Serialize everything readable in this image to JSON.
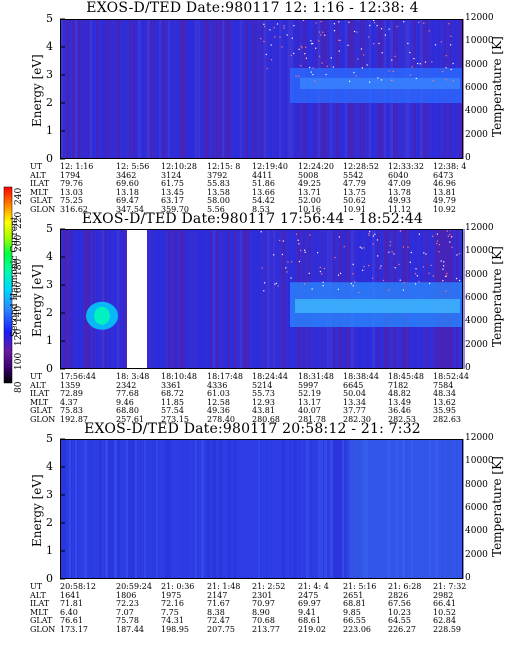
{
  "colorbar": {
    "label": "Second Harmonic Current",
    "ticks": [
      "240",
      "220",
      "200",
      "180",
      "160",
      "140",
      "120",
      "100",
      "80"
    ],
    "colors": [
      "#000000",
      "#3a0070",
      "#7a1aa0",
      "#1a1aff",
      "#2a7aff",
      "#00c8ff",
      "#00ffb0",
      "#00ff40",
      "#a0ff00",
      "#ffff00",
      "#ffa000",
      "#ff3000",
      "#ff0000"
    ]
  },
  "panels": [
    {
      "title": "EXOS-D/TED   Date:980117  12: 1:16 - 12:38: 4",
      "ylabel": "Energy [eV]",
      "ylabel_right": "Temperature [K]",
      "yticks": [
        "5",
        "4",
        "3",
        "2",
        "1",
        "0"
      ],
      "yticks_right": [
        "12000",
        "10000",
        "8000",
        "6000",
        "4000",
        "2000",
        "0"
      ],
      "ephem_labels": [
        "UT",
        "ALT",
        "ILAT",
        "MLT",
        "GLAT",
        "GLON"
      ],
      "ephem": [
        [
          "12: 1:16",
          "1794",
          "79.76",
          "13.03",
          "75.25",
          "316.62"
        ],
        [
          "12: 5:56",
          "3462",
          "69.60",
          "13.18",
          "69.47",
          "347.54"
        ],
        [
          "12:10:28",
          "3124",
          "61.75",
          "13.45",
          "63.17",
          "359.70"
        ],
        [
          "12:15: 8",
          "3792",
          "55.83",
          "13.58",
          "58.00",
          "5.56"
        ],
        [
          "12:19:40",
          "4411",
          "51.86",
          "13.66",
          "54.42",
          "8.53"
        ],
        [
          "12:24:20",
          "5008",
          "49.25",
          "13.71",
          "52.00",
          "10.16"
        ],
        [
          "12:28:52",
          "5542",
          "47.79",
          "13.75",
          "50.62",
          "10.91"
        ],
        [
          "12:33:32",
          "6040",
          "47.09",
          "13.78",
          "49.93",
          "11.12"
        ],
        [
          "12:38: 4",
          "6473",
          "46.96",
          "13.81",
          "49.79",
          "10.92"
        ]
      ]
    },
    {
      "title": "EXOS-D/TED   Date:980117  17:56:44 - 18:52:44",
      "ylabel": "Energy [eV]",
      "ylabel_right": "Temperature [K]",
      "yticks": [
        "5",
        "4",
        "3",
        "2",
        "1",
        "0"
      ],
      "yticks_right": [
        "12000",
        "10000",
        "8000",
        "6000",
        "4000",
        "2000",
        "0"
      ],
      "ephem_labels": [
        "UT",
        "ALT",
        "ILAT",
        "MLT",
        "GLAT",
        "GLON"
      ],
      "ephem": [
        [
          "17:56:44",
          "1359",
          "72.89",
          "4.37",
          "75.83",
          "192.87"
        ],
        [
          "18: 3:48",
          "2342",
          "77.68",
          "9.46",
          "68.80",
          "257.61"
        ],
        [
          "18:10:48",
          "3361",
          "68.72",
          "11.85",
          "57.54",
          "273.15"
        ],
        [
          "18:17:48",
          "4336",
          "61.03",
          "12.58",
          "49.36",
          "278.40"
        ],
        [
          "18:24:44",
          "5214",
          "55.73",
          "12.93",
          "43.81",
          "280.68"
        ],
        [
          "18:31:48",
          "5997",
          "52.19",
          "13.17",
          "40.07",
          "281.78"
        ],
        [
          "18:38:44",
          "6645",
          "50.04",
          "13.34",
          "37.77",
          "282.30"
        ],
        [
          "18:45:48",
          "7182",
          "48.82",
          "13.49",
          "36.46",
          "282.53"
        ],
        [
          "18:52:44",
          "7584",
          "48.34",
          "13.62",
          "35.95",
          "282.63"
        ]
      ]
    },
    {
      "title": "EXOS-D/TED   Date:980117  20:58:12 - 21: 7:32",
      "ylabel": "Energy [eV]",
      "ylabel_right": "Temperature [K]",
      "yticks": [
        "5",
        "4",
        "3",
        "2",
        "1",
        "0"
      ],
      "yticks_right": [
        "12000",
        "10000",
        "8000",
        "6000",
        "4000",
        "2000",
        "0"
      ],
      "ephem_labels": [
        "UT",
        "ALT",
        "ILAT",
        "MLT",
        "GLAT",
        "GLON"
      ],
      "ephem": [
        [
          "20:58:12",
          "1641",
          "71.81",
          "6.40",
          "76.61",
          "173.17"
        ],
        [
          "20:59:24",
          "1806",
          "72.23",
          "7.07",
          "75.78",
          "187.44"
        ],
        [
          "21: 0:36",
          "1975",
          "72.16",
          "7.75",
          "74.31",
          "198.95"
        ],
        [
          "21: 1:48",
          "2147",
          "71.67",
          "8.38",
          "72.47",
          "207.75"
        ],
        [
          "21: 2:52",
          "2301",
          "70.97",
          "8.90",
          "70.68",
          "213.77"
        ],
        [
          "21: 4: 4",
          "2475",
          "69.97",
          "9.41",
          "68.61",
          "219.02"
        ],
        [
          "21: 5:16",
          "2651",
          "68.81",
          "9.85",
          "66.55",
          "223.06"
        ],
        [
          "21: 6:28",
          "2826",
          "67.56",
          "10.23",
          "64.55",
          "226.27"
        ],
        [
          "21: 7:32",
          "2982",
          "66.41",
          "10.52",
          "62.84",
          "228.59"
        ]
      ]
    }
  ],
  "chart_data": [
    {
      "type": "heatmap",
      "title": "EXOS-D/TED   Date:980117  12: 1:16 - 12:38: 4",
      "xlabel": "UT",
      "ylabel": "Energy [eV]",
      "ylabel_right": "Temperature [K]",
      "ylim": [
        0,
        5
      ],
      "ylim_right": [
        0,
        12000
      ],
      "x": [
        "12: 1:16",
        "12: 5:56",
        "12:10:28",
        "12:15: 8",
        "12:19:40",
        "12:24:20",
        "12:28:52",
        "12:33:32",
        "12:38: 4"
      ]
    },
    {
      "type": "heatmap",
      "title": "EXOS-D/TED   Date:980117  17:56:44 - 18:52:44",
      "xlabel": "UT",
      "ylabel": "Energy [eV]",
      "ylabel_right": "Temperature [K]",
      "ylim": [
        0,
        5
      ],
      "ylim_right": [
        0,
        12000
      ],
      "x": [
        "17:56:44",
        "18: 3:48",
        "18:10:48",
        "18:17:48",
        "18:24:44",
        "18:31:48",
        "18:38:44",
        "18:45:48",
        "18:52:44"
      ]
    },
    {
      "type": "heatmap",
      "title": "EXOS-D/TED   Date:980117  20:58:12 - 21: 7:32",
      "xlabel": "UT",
      "ylabel": "Energy [eV]",
      "ylabel_right": "Temperature [K]",
      "ylim": [
        0,
        5
      ],
      "ylim_right": [
        0,
        12000
      ],
      "x": [
        "20:58:12",
        "20:59:24",
        "21: 0:36",
        "21: 1:48",
        "21: 2:52",
        "21: 4: 4",
        "21: 5:16",
        "21: 6:28",
        "21: 7:32"
      ]
    }
  ]
}
